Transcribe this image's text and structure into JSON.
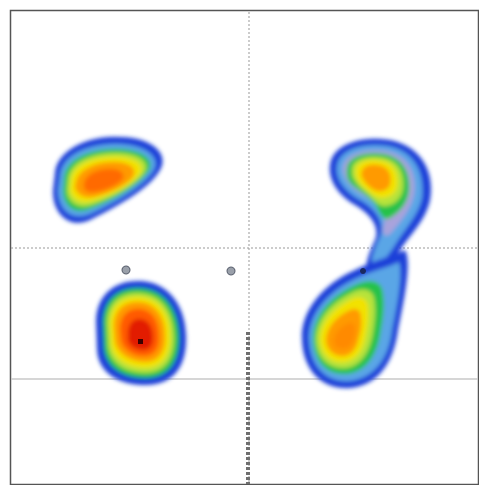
{
  "chart_data": {
    "type": "heatmap",
    "style": "density-contour",
    "grid": true,
    "color_scale": [
      "#1f3fd8",
      "#5aa6e6",
      "#7fc9f0",
      "#a9a3dc",
      "#26c24a",
      "#b7e33a",
      "#f2e200",
      "#ff9a00",
      "#ff5a00",
      "#e21f00"
    ],
    "clusters": [
      {
        "id": "upper-left",
        "center": [
          0.2,
          0.65
        ],
        "peak": "orange"
      },
      {
        "id": "upper-right",
        "center": [
          0.78,
          0.65
        ],
        "peak": "orange"
      },
      {
        "id": "lower-left",
        "center": [
          0.27,
          0.3
        ],
        "peak": "red"
      },
      {
        "id": "lower-right",
        "center": [
          0.7,
          0.3
        ],
        "peak": "orange"
      }
    ],
    "gates": {
      "vertical_dotted": 0.49,
      "horizontal_dotted": 0.5,
      "horizontal_solid": 0.21
    }
  }
}
